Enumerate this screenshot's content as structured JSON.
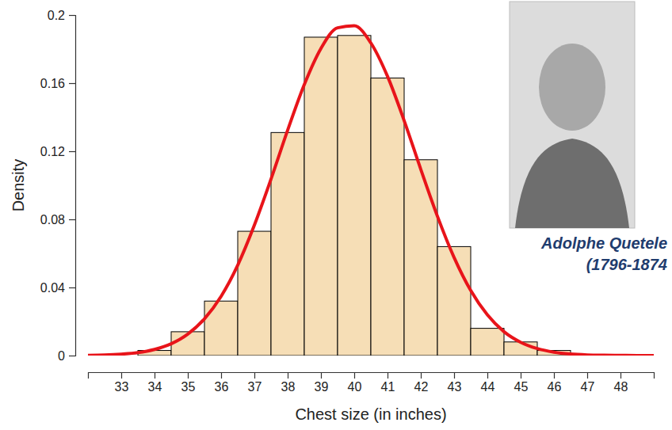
{
  "chart_data": {
    "type": "histogram",
    "x_label": "Chest size (in inches)",
    "y_label": "Density",
    "annotations": [
      "Adolphe Quetele",
      "(1796-1874"
    ],
    "bins": [
      33.5,
      34.5,
      35.5,
      36.5,
      37.5,
      38.5,
      39.5,
      40.5,
      41.5,
      42.5,
      43.5,
      44.5,
      45.5,
      46.5
    ],
    "values": [
      0.003,
      0.014,
      0.032,
      0.073,
      0.131,
      0.187,
      0.188,
      0.163,
      0.115,
      0.064,
      0.016,
      0.008,
      0.003
    ],
    "color": "#f6deb6",
    "series": [
      {
        "type": "line",
        "color": "#e8141a",
        "x": [
          32,
          32.5,
          33,
          33.5,
          34,
          34.5,
          35,
          35.5,
          36,
          36.5,
          37,
          37.5,
          38,
          38.5,
          39,
          39.5,
          40,
          40.5,
          41,
          41.5,
          42,
          42.5,
          43,
          43.5,
          44,
          44.5,
          45,
          45.5,
          46,
          46.5,
          47,
          47.5,
          48,
          48.5,
          49
        ],
        "values": [
          0.0001,
          0.0003,
          0.0008,
          0.0017,
          0.0036,
          0.0069,
          0.0126,
          0.0216,
          0.0348,
          0.0531,
          0.0766,
          0.1037,
          0.1324,
          0.1592,
          0.1804,
          0.1925,
          0.1937,
          0.1836,
          0.164,
          0.138,
          0.1094,
          0.0818,
          0.0576,
          0.0382,
          0.0239,
          0.014,
          0.0078,
          0.0041,
          0.002,
          0.0009,
          0.0004,
          0.0002,
          0.0001,
          0,
          0
        ]
      }
    ],
    "xlim": [
      32,
      49
    ],
    "xticks": [
      33,
      34,
      35,
      36,
      37,
      38,
      39,
      40,
      41,
      42,
      43,
      44,
      45,
      46,
      47,
      48
    ],
    "ylim": [
      0,
      0.2
    ],
    "yticks": [
      0,
      0.04,
      0.08,
      0.12,
      0.16,
      0.2
    ],
    "grid": false
  }
}
